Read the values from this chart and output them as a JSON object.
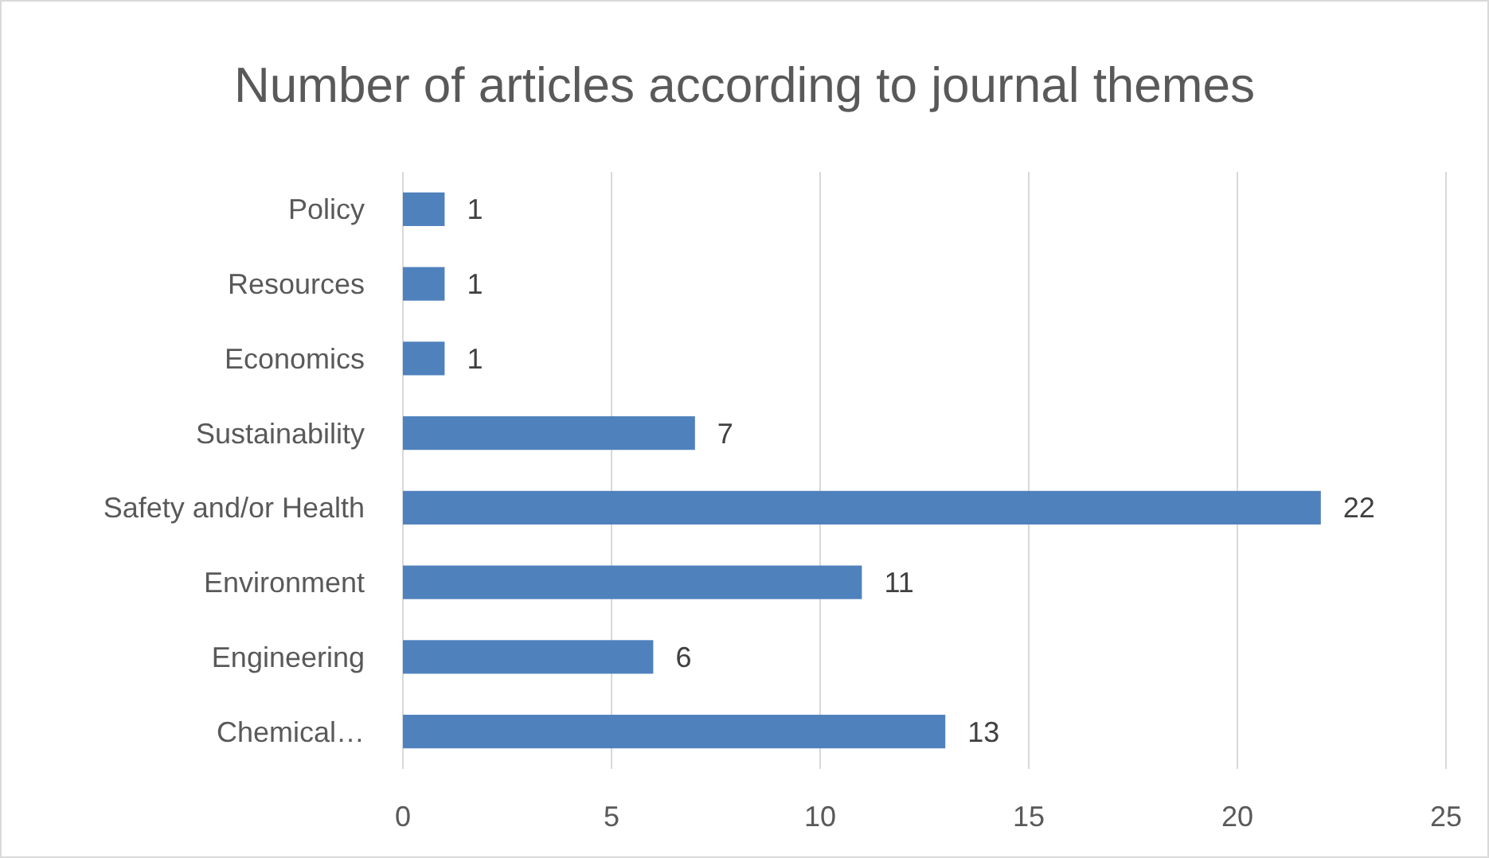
{
  "chart_data": {
    "type": "bar",
    "orientation": "horizontal",
    "title": "Number of articles according to journal themes",
    "categories": [
      "Policy",
      "Resources",
      "Economics",
      "Sustainability",
      "Safety and/or Health",
      "Environment",
      "Engineering",
      "Chemical…"
    ],
    "values": [
      1,
      1,
      1,
      7,
      22,
      11,
      6,
      13
    ],
    "color": "#4f81bd",
    "xlim": [
      0,
      25
    ],
    "xticks": [
      0,
      5,
      10,
      15,
      20,
      25
    ],
    "grid": "x",
    "data_labels": true
  }
}
